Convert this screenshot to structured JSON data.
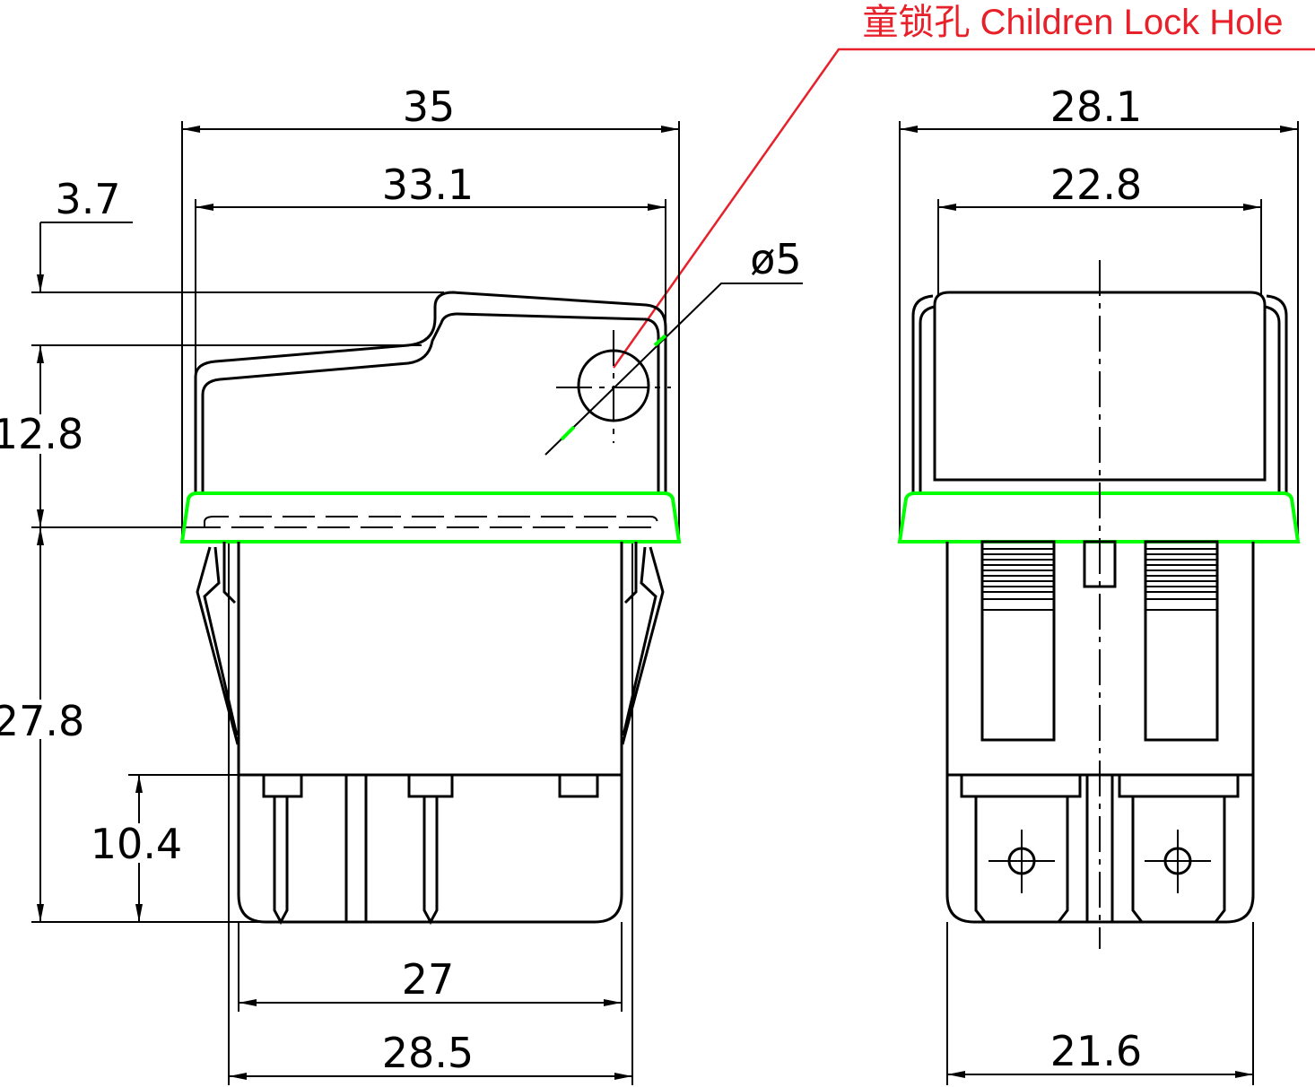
{
  "callout": {
    "label": "童锁孔 Children Lock Hole",
    "color": "#e8202a"
  },
  "colors": {
    "outline": "#000000",
    "bezel_highlight": "#00ff00"
  },
  "front_view": {
    "dims": {
      "overall_width": "35",
      "rocker_width": "33.1",
      "rocker_offset": "3.7",
      "rocker_height": "12.8",
      "body_depth": "27.8",
      "terminal_length": "10.4",
      "body_width": "27",
      "clip_width": "28.5",
      "hole_diameter": "ø5"
    }
  },
  "side_view": {
    "dims": {
      "overall_width": "28.1",
      "rocker_width": "22.8",
      "body_width": "21.6"
    }
  }
}
